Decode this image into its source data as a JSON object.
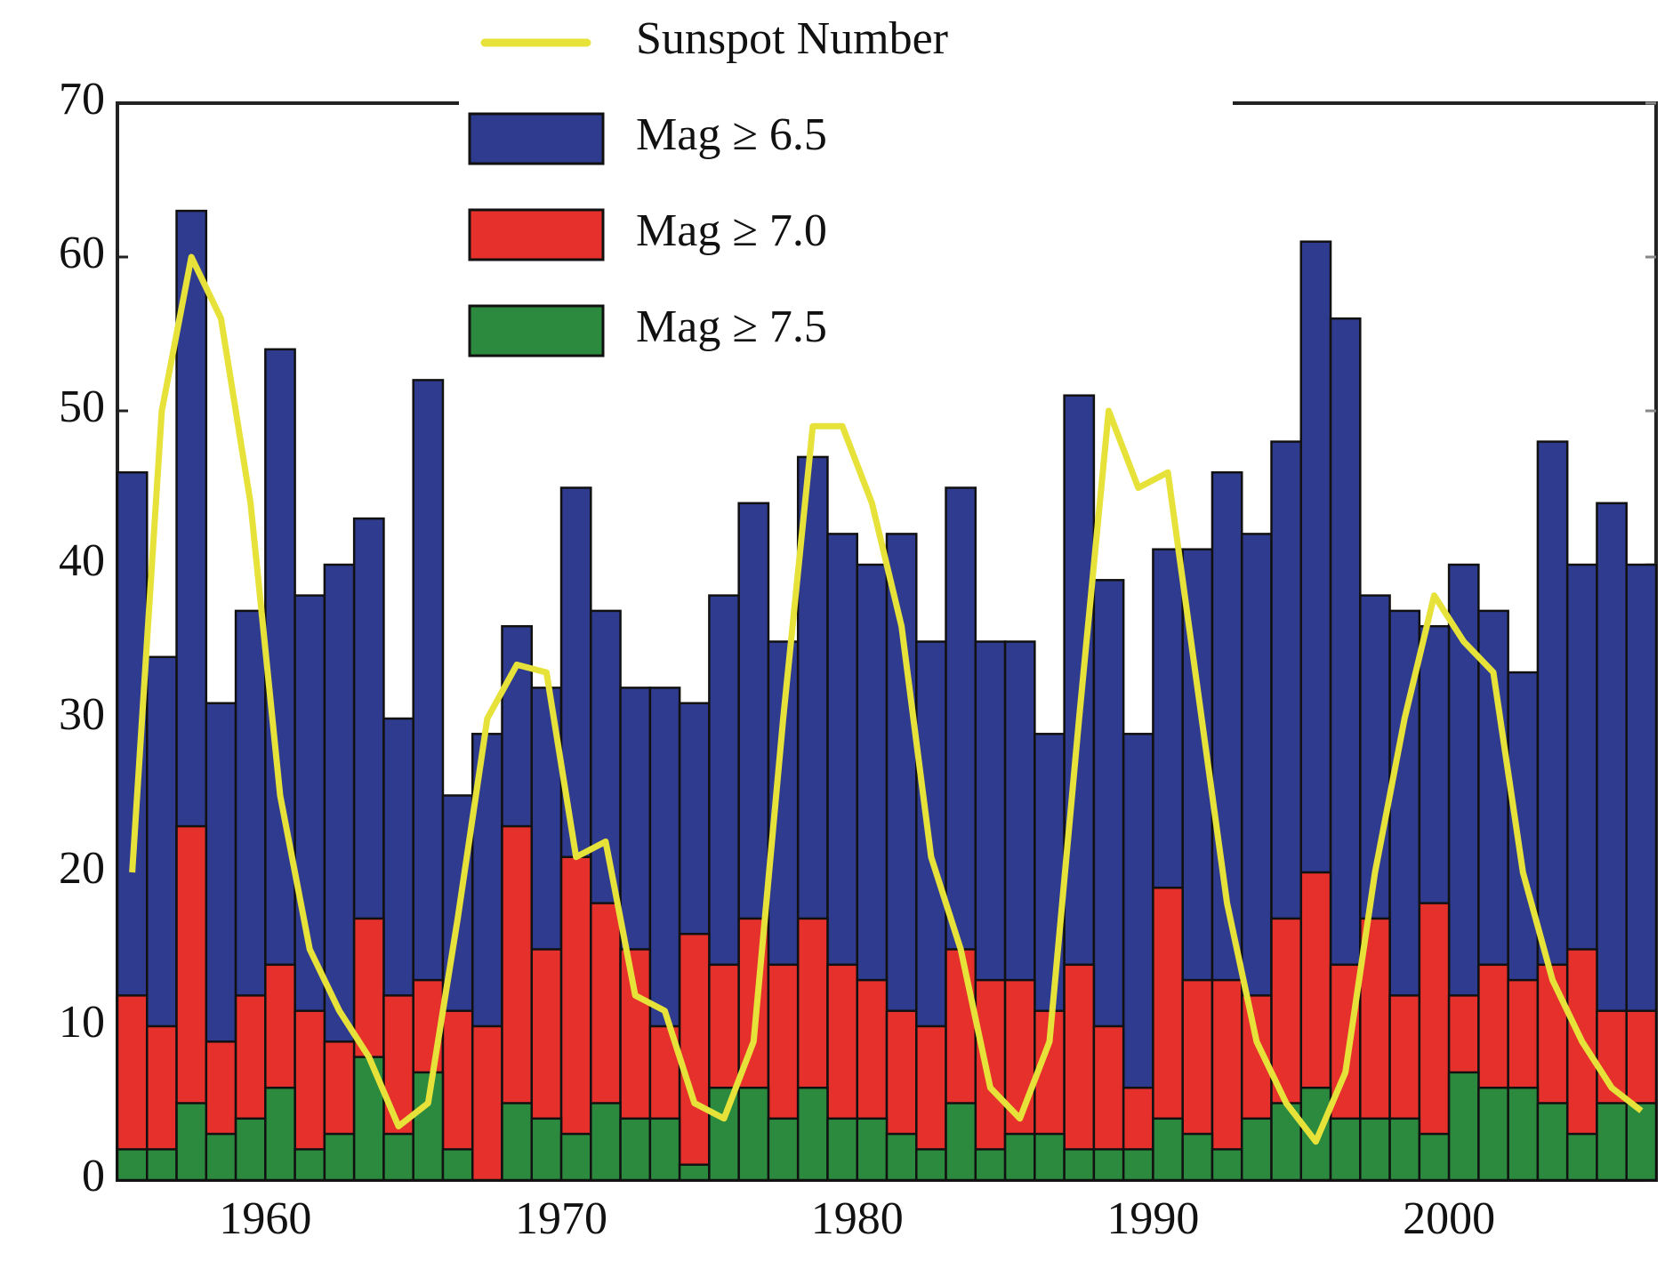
{
  "chart_data": {
    "type": "bar",
    "x": [
      1955,
      1956,
      1957,
      1958,
      1959,
      1960,
      1961,
      1962,
      1963,
      1964,
      1965,
      1966,
      1967,
      1968,
      1969,
      1970,
      1971,
      1972,
      1973,
      1974,
      1975,
      1976,
      1977,
      1978,
      1979,
      1980,
      1981,
      1982,
      1983,
      1984,
      1985,
      1986,
      1987,
      1988,
      1989,
      1990,
      1991,
      1992,
      1993,
      1994,
      1995,
      1996,
      1997,
      1998,
      1999,
      2000,
      2001,
      2002,
      2003,
      2004,
      2005,
      2006
    ],
    "series": [
      {
        "name": "Sunspot Number",
        "type": "line",
        "color": "#e6e23a",
        "values": [
          20,
          50,
          60,
          56,
          44,
          25,
          15,
          11,
          8,
          3.5,
          5,
          17,
          30,
          33.5,
          33,
          21,
          22,
          12,
          11,
          5,
          4,
          9,
          30,
          49,
          49,
          44,
          36,
          21,
          15,
          6,
          4,
          9,
          30,
          50,
          45,
          46,
          32,
          18,
          9,
          5,
          2.5,
          7,
          20,
          30,
          38,
          35,
          33,
          20,
          13,
          9,
          6,
          4.5
        ]
      },
      {
        "name": "Mag ≥ 6.5",
        "type": "bar",
        "color": "#2f3b8f",
        "values": [
          46,
          34,
          63,
          31,
          37,
          54,
          38,
          40,
          43,
          30,
          52,
          25,
          29,
          36,
          32,
          45,
          37,
          32,
          32,
          31,
          38,
          44,
          35,
          47,
          42,
          40,
          42,
          35,
          45,
          35,
          35,
          29,
          51,
          39,
          29,
          41,
          41,
          46,
          42,
          48,
          61,
          56,
          38,
          37,
          36,
          40,
          37,
          33,
          48,
          40,
          44,
          40
        ]
      },
      {
        "name": "Mag ≥ 7.0",
        "type": "bar",
        "color": "#e5302b",
        "values": [
          12,
          10,
          23,
          9,
          12,
          14,
          11,
          9,
          17,
          12,
          13,
          11,
          10,
          23,
          15,
          21,
          18,
          15,
          10,
          16,
          14,
          17,
          14,
          17,
          14,
          13,
          11,
          10,
          15,
          13,
          13,
          11,
          14,
          10,
          6,
          19,
          13,
          13,
          12,
          17,
          20,
          14,
          17,
          12,
          18,
          12,
          14,
          13,
          14,
          15,
          11,
          11
        ]
      },
      {
        "name": "Mag ≥ 7.5",
        "type": "bar",
        "color": "#2b8a3e",
        "values": [
          2,
          2,
          5,
          3,
          4,
          6,
          2,
          3,
          8,
          3,
          7,
          2,
          0,
          5,
          4,
          3,
          5,
          4,
          4,
          1,
          6,
          6,
          4,
          6,
          4,
          4,
          3,
          2,
          5,
          2,
          3,
          3,
          2,
          2,
          2,
          4,
          3,
          2,
          4,
          5,
          6,
          4,
          4,
          4,
          3,
          7,
          6,
          6,
          5,
          3,
          5,
          5
        ]
      }
    ],
    "xlim": [
      1955,
      2007
    ],
    "xticks": [
      1960,
      1970,
      1980,
      1990,
      2000
    ],
    "ylim": [
      0,
      70
    ],
    "yticks": [
      0,
      10,
      20,
      30,
      40,
      50,
      60,
      70
    ]
  }
}
